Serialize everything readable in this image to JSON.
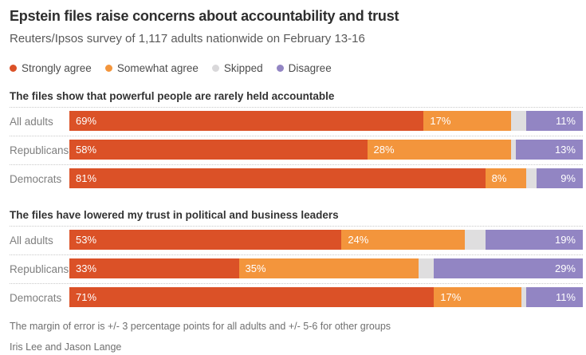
{
  "header": {
    "title": "Epstein files raise concerns about accountability and trust",
    "subtitle": "Reuters/Ipsos survey of 1,117 adults nationwide on February 13-16"
  },
  "legend": {
    "items": [
      {
        "label": "Strongly agree",
        "color": "#db5127"
      },
      {
        "label": "Somewhat agree",
        "color": "#f3953c"
      },
      {
        "label": "Skipped",
        "color": "#d9d8da"
      },
      {
        "label": "Disagree",
        "color": "#9285c3"
      }
    ]
  },
  "chart_data": [
    {
      "type": "bar",
      "stacked": true,
      "orientation": "horizontal",
      "title": "The files show that powerful people are rarely held accountable",
      "categories": [
        "All adults",
        "Republicans",
        "Democrats"
      ],
      "xlim": [
        0,
        100
      ],
      "value_suffix": "%",
      "grid": false,
      "series": [
        {
          "name": "Strongly agree",
          "color": "#db5127",
          "values": [
            69,
            58,
            81
          ]
        },
        {
          "name": "Somewhat agree",
          "color": "#f3953c",
          "values": [
            17,
            28,
            8
          ]
        },
        {
          "name": "Skipped",
          "color": "#dfdedf",
          "values": [
            3,
            1,
            2
          ],
          "show_label": false
        },
        {
          "name": "Disagree",
          "color": "#9285c3",
          "values": [
            11,
            13,
            9
          ],
          "label_align": "right"
        }
      ]
    },
    {
      "type": "bar",
      "stacked": true,
      "orientation": "horizontal",
      "title": "The files have lowered my trust in political and business leaders",
      "categories": [
        "All adults",
        "Republicans",
        "Democrats"
      ],
      "xlim": [
        0,
        100
      ],
      "value_suffix": "%",
      "grid": false,
      "series": [
        {
          "name": "Strongly agree",
          "color": "#db5127",
          "values": [
            53,
            33,
            71
          ]
        },
        {
          "name": "Somewhat agree",
          "color": "#f3953c",
          "values": [
            24,
            35,
            17
          ]
        },
        {
          "name": "Skipped",
          "color": "#dfdedf",
          "values": [
            4,
            3,
            1
          ],
          "show_label": false
        },
        {
          "name": "Disagree",
          "color": "#9285c3",
          "values": [
            19,
            29,
            11
          ],
          "label_align": "right"
        }
      ]
    }
  ],
  "footer": {
    "note": "The margin of error is +/- 3 percentage points for all adults and +/- 5-6 for other groups",
    "byline": "Iris Lee and Jason Lange"
  }
}
